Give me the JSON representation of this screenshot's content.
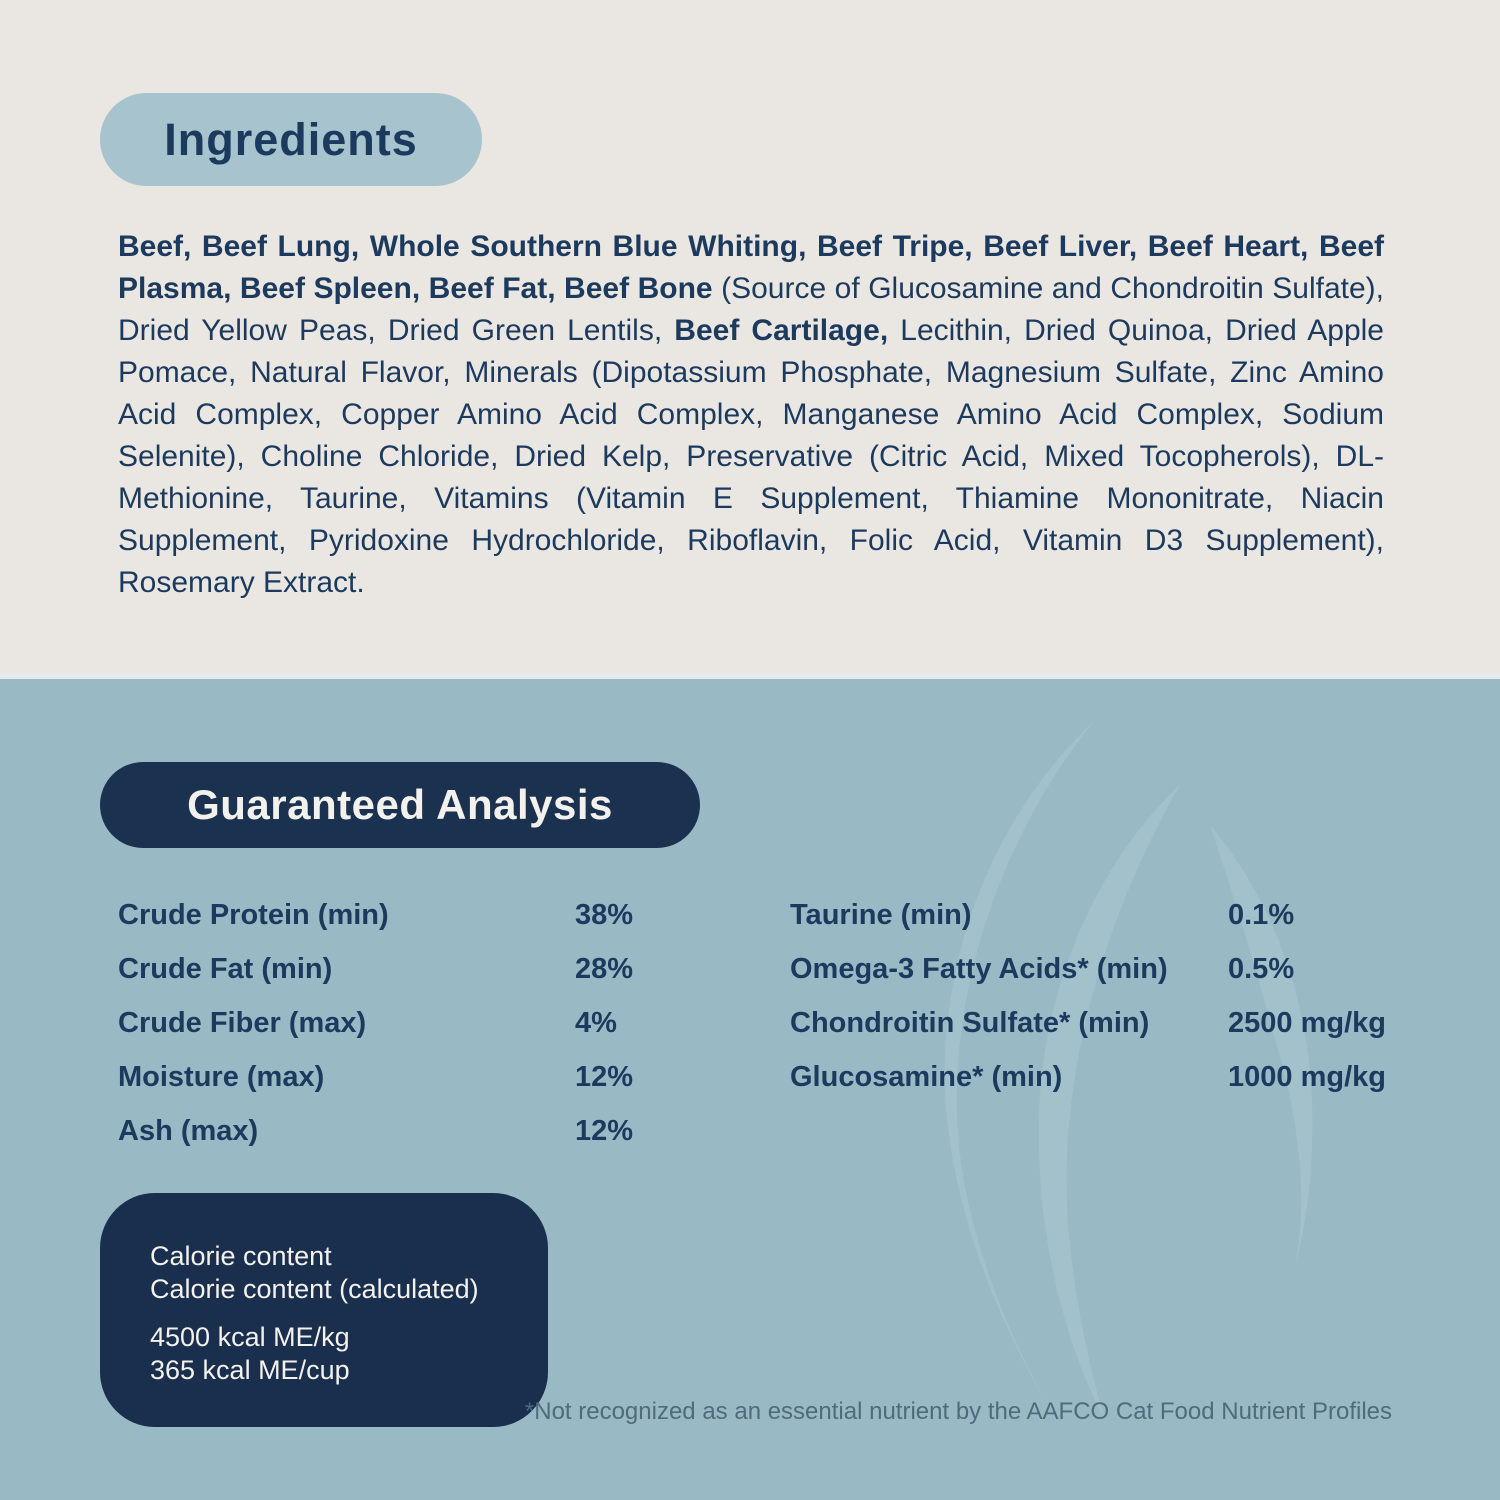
{
  "colors": {
    "cream_bg": "#EAE6E1",
    "blue_bg": "#99B9C5",
    "divider": "#E6EAEA",
    "light_pill_bg": "#A6C3CE",
    "navy_text": "#1C3A5E",
    "dark_pill_bg": "#1B3150",
    "calorie_box_bg": "#192F4D",
    "light_text": "#F3F1ED",
    "footnote_text": "#4E6C7B",
    "aroma_decoration": "#A3C1CB"
  },
  "ingredients": {
    "title": "Ingredients",
    "segments": [
      {
        "text": "Beef, Beef Lung, Whole Southern Blue Whiting, Beef Tripe, Beef Liver, Beef Heart, Beef Plasma, Beef Spleen, Beef Fat, Beef Bone",
        "bold": true
      },
      {
        "text": " (Source of Glucosamine and Chondroitin Sulfate), Dried Yellow Peas, Dried Green Lentils, ",
        "bold": false
      },
      {
        "text": "Beef Cartilage,",
        "bold": true
      },
      {
        "text": " Lecithin, Dried Quinoa, Dried Apple Pomace, Natural Flavor, Minerals (Dipotassium Phosphate, Magnesium Sulfate, Zinc Amino Acid Complex, Copper Amino Acid Complex, Manganese Amino Acid Complex, Sodium Selenite), Choline Chloride, Dried Kelp, Preservative (Citric Acid, Mixed Tocopherols), DL-Methionine, Taurine, Vitamins (Vitamin E Supplement, Thiamine Mononitrate, Niacin Supplement, Pyridoxine Hydrochloride, Riboflavin, Folic Acid, Vitamin D3 Supplement), Rosemary Extract.",
        "bold": false
      }
    ]
  },
  "guaranteed_analysis": {
    "title": "Guaranteed Analysis",
    "left_rows": [
      {
        "label": "Crude Protein (min)",
        "value": "38%"
      },
      {
        "label": "Crude Fat (min)",
        "value": "28%"
      },
      {
        "label": "Crude Fiber (max)",
        "value": "4%"
      },
      {
        "label": "Moisture (max)",
        "value": "12%"
      },
      {
        "label": "Ash (max)",
        "value": "12%"
      }
    ],
    "right_rows": [
      {
        "label": "Taurine (min)",
        "value": "0.1%"
      },
      {
        "label": "Omega-3 Fatty Acids* (min)",
        "value": "0.5%"
      },
      {
        "label": "Chondroitin Sulfate* (min)",
        "value": "2500 mg/kg"
      },
      {
        "label": "Glucosamine* (min)",
        "value": "1000 mg/kg"
      }
    ]
  },
  "calorie_box": {
    "line1": "Calorie content",
    "line2": "Calorie content (calculated)",
    "line3": "4500 kcal ME/kg",
    "line4": "365 kcal ME/cup"
  },
  "footnote": "*Not recognized as an essential nutrient by the AAFCO Cat Food Nutrient Profiles"
}
